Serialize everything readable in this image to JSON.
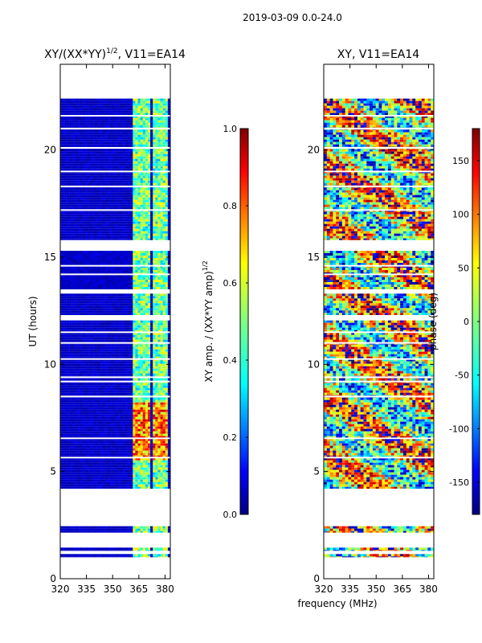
{
  "figure_title": "2019-03-09 0.0-24.0",
  "x_axis_label": "frequency (MHz)",
  "chart_data": [
    {
      "type": "heatmap",
      "id": "amp",
      "title_main": "XY/(XX*YY)",
      "title_sup": "1/2",
      "title_tail": ", V11=EA14",
      "ylabel": "UT (hours)",
      "xlim": [
        320,
        383
      ],
      "ylim": [
        0,
        24
      ],
      "xticks": [
        320,
        335,
        350,
        365,
        380
      ],
      "yticks": [
        0,
        5,
        10,
        15,
        20
      ],
      "colorscale": "jet",
      "colorbar": {
        "label_main": "XY amp. / (XX*YY amp)",
        "label_sup": "1/2",
        "range": [
          0.0,
          1.0
        ],
        "ticks": [
          "0.0",
          "0.2",
          "0.4",
          "0.6",
          "0.8",
          "1.0"
        ]
      },
      "data_rows_ut": [
        [
          1.0,
          1.15
        ],
        [
          1.3,
          1.45
        ],
        [
          2.15,
          2.45
        ],
        [
          4.2,
          12.05
        ],
        [
          12.3,
          13.3
        ],
        [
          13.5,
          15.3
        ],
        [
          15.8,
          22.4
        ]
      ],
      "gaps_ut": [
        5.65,
        6.55,
        8.5,
        9.2,
        9.4,
        10.25,
        11.0,
        11.5,
        14.2,
        14.6,
        17.2,
        18.3,
        19.0,
        20.1,
        21.0,
        21.6
      ],
      "bright_band_mhz": [
        [
          362,
          366
        ],
        [
          366,
          371
        ],
        [
          373,
          378
        ],
        [
          378,
          382
        ]
      ],
      "peak_hours_ut": [
        5.5,
        8.2
      ]
    },
    {
      "type": "heatmap",
      "id": "phase",
      "title_main": "XY, V11=EA14",
      "ylabel": "",
      "xlim": [
        320,
        383
      ],
      "ylim": [
        0,
        24
      ],
      "xticks": [
        320,
        335,
        350,
        365,
        380
      ],
      "yticks": [
        0,
        5,
        10,
        15,
        20
      ],
      "colorscale": "jet",
      "colorbar": {
        "label_main": "phase (deg)",
        "range": [
          -180,
          180
        ],
        "ticks": [
          "-150",
          "-100",
          "-50",
          "0",
          "50",
          "100",
          "150"
        ]
      },
      "data_rows_ut": [
        [
          1.0,
          1.15
        ],
        [
          1.3,
          1.45
        ],
        [
          2.15,
          2.45
        ],
        [
          4.2,
          12.05
        ],
        [
          12.3,
          13.3
        ],
        [
          13.5,
          15.3
        ],
        [
          15.8,
          22.4
        ]
      ],
      "gaps_ut": [
        5.65,
        6.55,
        8.5,
        9.2,
        9.4,
        10.25,
        11.0,
        11.5,
        14.2,
        14.6,
        17.2,
        18.3,
        19.0,
        20.1,
        21.0,
        21.6
      ]
    }
  ]
}
